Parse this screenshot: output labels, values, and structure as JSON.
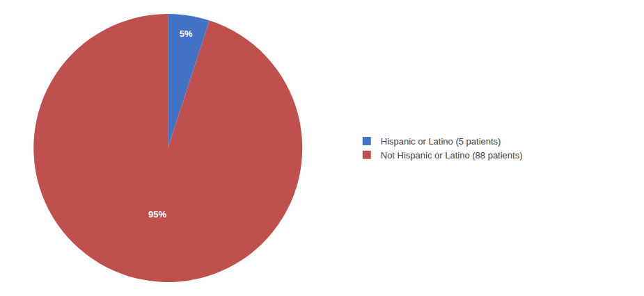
{
  "chart_data": {
    "type": "pie",
    "categories": [
      "Hispanic or Latino (5 patients)",
      "Not Hispanic or Latino (88 patients)"
    ],
    "values": [
      5,
      95
    ],
    "value_labels": [
      "5%",
      "95%"
    ],
    "colors": [
      "#4472C4",
      "#C0504D"
    ],
    "data_labels": true,
    "legend": "right"
  }
}
